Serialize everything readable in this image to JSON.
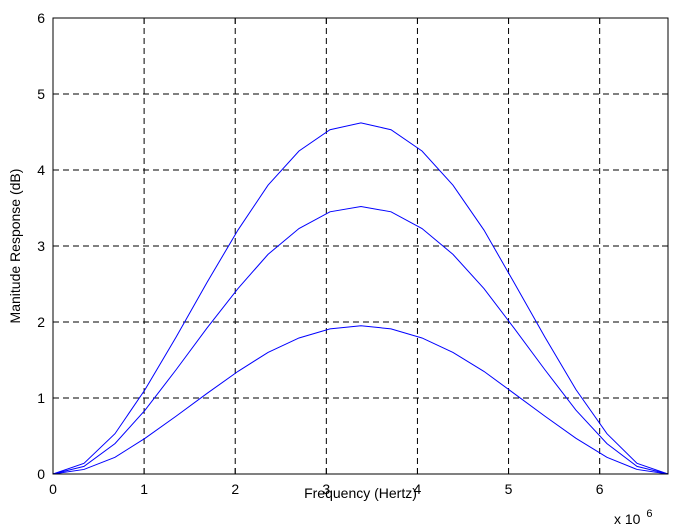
{
  "chart_data": {
    "type": "line",
    "title": "",
    "xlabel": "Frequency (Hertz)",
    "ylabel": "Manitude Response (dB)",
    "x_multiplier_label": "x 10",
    "x_multiplier_exponent": "6",
    "xlim": [
      0,
      6.75
    ],
    "ylim": [
      0,
      6
    ],
    "xticks": [
      0,
      1,
      2,
      3,
      4,
      5,
      6
    ],
    "yticks": [
      0,
      1,
      2,
      3,
      4,
      5,
      6
    ],
    "xtick_labels": [
      "0",
      "1",
      "2",
      "3",
      "4",
      "5",
      "6"
    ],
    "ytick_labels": [
      "0",
      "1",
      "2",
      "3",
      "4",
      "5",
      "6"
    ],
    "grid": true,
    "grid_style": "dashed",
    "line_color": "#0000ff",
    "series": [
      {
        "x": [
          0,
          0.34,
          0.68,
          1.01,
          1.35,
          1.69,
          2.03,
          2.36,
          2.7,
          3.04,
          3.38,
          3.71,
          4.05,
          4.39,
          4.73,
          5.06,
          5.4,
          5.74,
          6.08,
          6.41,
          6.75
        ],
        "values": [
          0.0,
          0.14,
          0.53,
          1.11,
          1.8,
          2.52,
          3.21,
          3.8,
          4.25,
          4.53,
          4.62,
          4.53,
          4.25,
          3.8,
          3.21,
          2.52,
          1.8,
          1.11,
          0.53,
          0.14,
          0.0
        ]
      },
      {
        "x": [
          0,
          0.34,
          0.68,
          1.01,
          1.35,
          1.69,
          2.03,
          2.36,
          2.7,
          3.04,
          3.38,
          3.71,
          4.05,
          4.39,
          4.73,
          5.06,
          5.4,
          5.74,
          6.08,
          6.41,
          6.75
        ],
        "values": [
          0.0,
          0.1,
          0.4,
          0.84,
          1.37,
          1.92,
          2.44,
          2.89,
          3.23,
          3.45,
          3.52,
          3.45,
          3.23,
          2.89,
          2.44,
          1.92,
          1.37,
          0.84,
          0.4,
          0.1,
          0.0
        ]
      },
      {
        "x": [
          0,
          0.34,
          0.68,
          1.01,
          1.35,
          1.69,
          2.03,
          2.36,
          2.7,
          3.04,
          3.38,
          3.71,
          4.05,
          4.39,
          4.73,
          5.06,
          5.4,
          5.74,
          6.08,
          6.41,
          6.75
        ],
        "values": [
          0.0,
          0.06,
          0.22,
          0.47,
          0.76,
          1.06,
          1.35,
          1.6,
          1.79,
          1.91,
          1.95,
          1.91,
          1.79,
          1.6,
          1.35,
          1.06,
          0.76,
          0.47,
          0.22,
          0.06,
          0.0
        ]
      },
      {
        "x": [
          0,
          0.34,
          0.68,
          1.01,
          1.35,
          1.69,
          2.03,
          2.36,
          2.7,
          3.04,
          3.38,
          3.71,
          4.05,
          4.39,
          4.73,
          5.06,
          5.4,
          5.74,
          6.08,
          6.41,
          6.75
        ],
        "values": [
          0.0,
          0.0,
          0.0,
          0.0,
          0.0,
          0.0,
          0.0,
          0.0,
          0.0,
          0.0,
          0.0,
          0.0,
          0.0,
          0.0,
          0.0,
          0.0,
          0.0,
          0.0,
          0.0,
          0.0,
          0.0
        ]
      }
    ]
  }
}
